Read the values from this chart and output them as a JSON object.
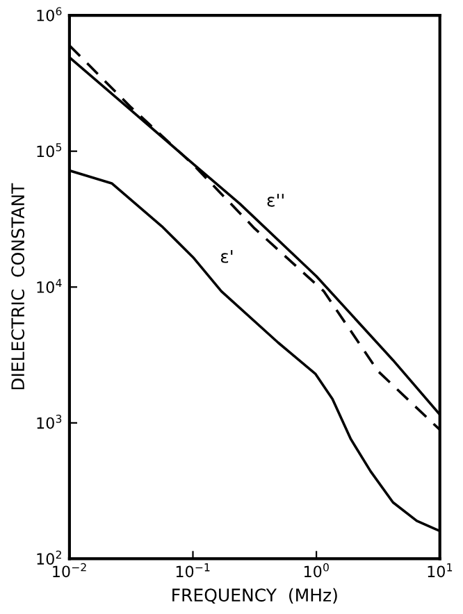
{
  "chart_data": {
    "type": "line",
    "xlabel": "FREQUENCY  (MHz)",
    "ylabel": "DIELECTRIC  CONSTANT",
    "log": "xy",
    "grid": false,
    "legend": false,
    "marker": "none",
    "xlim": [
      0.01,
      10
    ],
    "ylim": [
      100,
      1000000
    ],
    "xticks": [
      {
        "value": 0.01,
        "label": "10$^{−2}$"
      },
      {
        "value": 0.1,
        "label": "10$^{−1}$"
      },
      {
        "value": 1,
        "label": "10$^{0}$"
      },
      {
        "value": 10,
        "label": "10$^{1}$"
      }
    ],
    "yticks": [
      {
        "value": 100,
        "label": "10$^{2}$"
      },
      {
        "value": 1000,
        "label": "10$^{3}$"
      },
      {
        "value": 10000,
        "label": "10$^{4}$"
      },
      {
        "value": 100000,
        "label": "10$^{5}$"
      },
      {
        "value": 1000000,
        "label": "10$^{6}$"
      }
    ],
    "series": [
      {
        "name": "ε''",
        "color": "#000000",
        "line_style": "solid",
        "x": [
          0.01,
          0.0316,
          0.1,
          0.24,
          1,
          4.17,
          10
        ],
        "values": [
          490000,
          200000,
          81000,
          41000,
          12000,
          2900,
          1150
        ]
      },
      {
        "color": "#000000",
        "line_style": "dashed",
        "x": [
          0.01,
          0.0316,
          0.1,
          0.316,
          1.15,
          3.16,
          10
        ],
        "values": [
          600000,
          210000,
          80000,
          27000,
          9300,
          2400,
          890
        ]
      },
      {
        "name": "ε'",
        "color": "#000000",
        "line_style": "solid",
        "x": [
          0.01,
          0.022,
          0.056,
          0.1,
          0.17,
          0.49,
          0.98,
          1.35,
          1.9,
          2.75,
          4.17,
          6.5,
          10
        ],
        "values": [
          72000,
          58000,
          28000,
          16600,
          9300,
          3900,
          2300,
          1500,
          760,
          440,
          260,
          190,
          160
        ]
      }
    ]
  }
}
